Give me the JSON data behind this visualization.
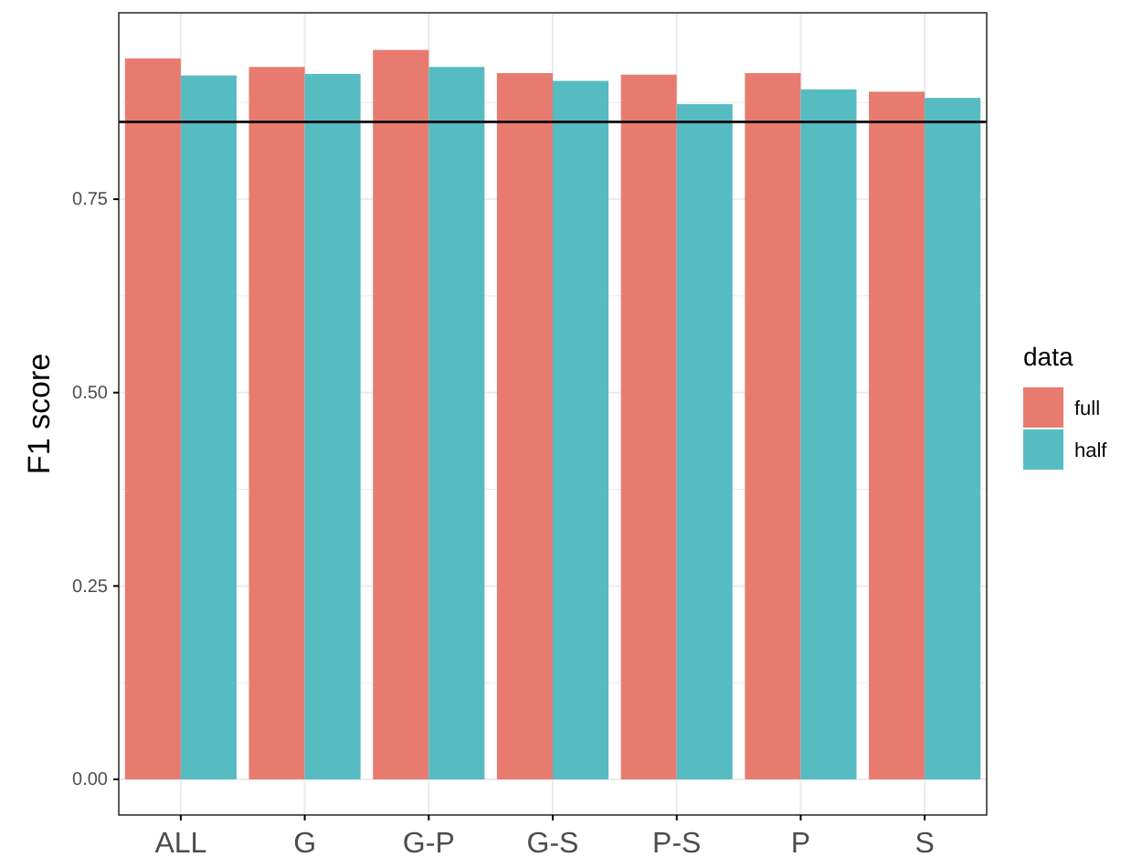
{
  "chart_data": {
    "type": "bar",
    "ylabel": "F1 score",
    "legend_title": "data",
    "categories": [
      "ALL",
      "G",
      "G-P",
      "G-S",
      "P-S",
      "P",
      "S"
    ],
    "series": [
      {
        "name": "full",
        "color": "#e87b70",
        "values": [
          0.932,
          0.921,
          0.943,
          0.913,
          0.911,
          0.913,
          0.889
        ]
      },
      {
        "name": "half",
        "color": "#56bcc2",
        "values": [
          0.91,
          0.912,
          0.921,
          0.903,
          0.873,
          0.892,
          0.881
        ]
      }
    ],
    "ylim": [
      -0.046,
      0.991
    ],
    "yticks": [
      {
        "value": 0,
        "label": "0.00"
      },
      0.25,
      {
        "value": 0.5,
        "label": "0.50"
      },
      0.75
    ],
    "ref_lines": [
      {
        "axis": "y",
        "value": 0.85,
        "color": "#000000"
      }
    ],
    "grid": true,
    "legend": "right"
  }
}
